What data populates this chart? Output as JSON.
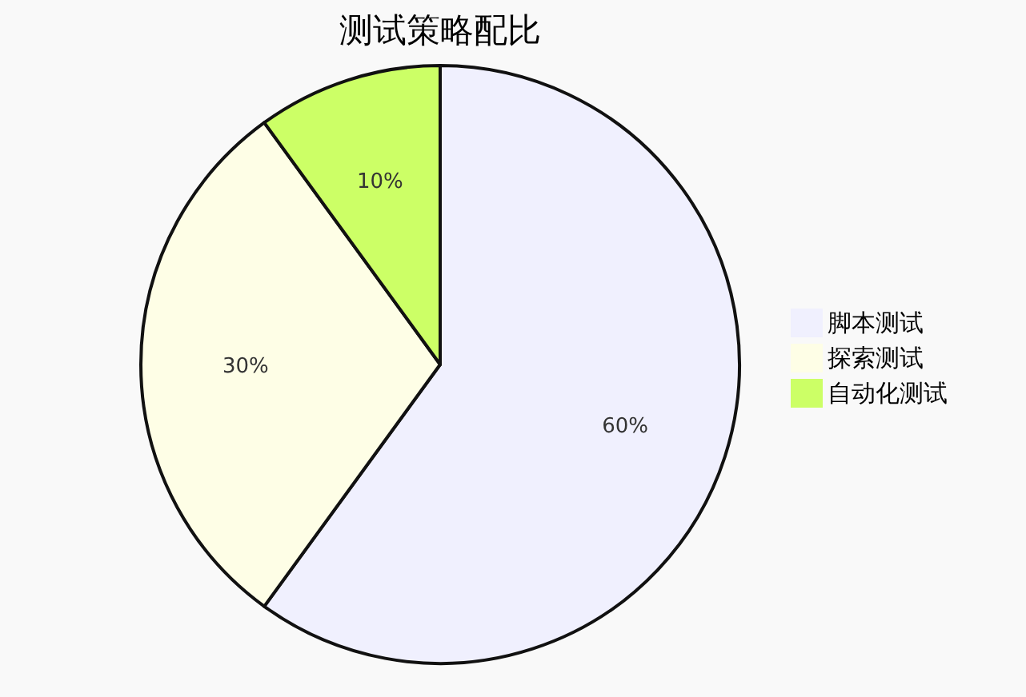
{
  "chart_data": {
    "type": "pie",
    "title": "测试策略配比",
    "categories": [
      "脚本测试",
      "探索测试",
      "自动化测试"
    ],
    "values": [
      60,
      30,
      10
    ],
    "colors": [
      "#f0f0fe",
      "#fefee6",
      "#ccff66"
    ],
    "value_labels": [
      "60%",
      "30%",
      "10%"
    ],
    "legend": "right"
  }
}
